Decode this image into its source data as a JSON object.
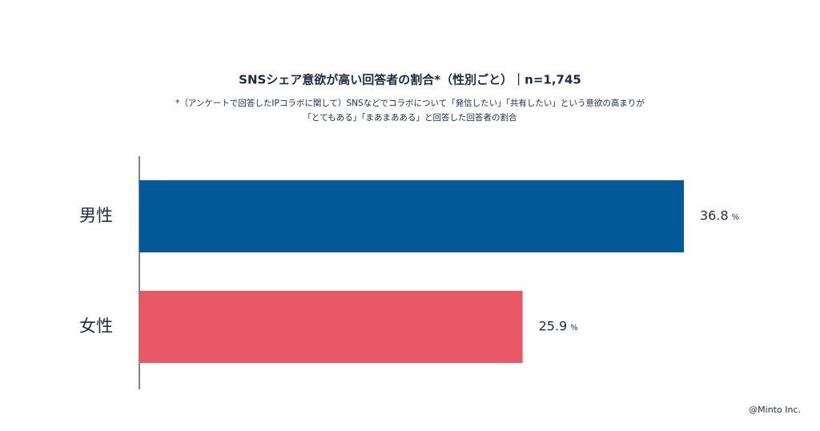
{
  "chart_data": {
    "type": "bar",
    "orientation": "horizontal",
    "title": "SNSシェア意欲が高い回答者の割合*（性別ごと）｜n=1,745",
    "subtitle": [
      "*（アンケートで回答したIPコラボに関して）SNSなどでコラボについて「発信したい」「共有したい」という意欲の高まりが",
      "「とてもある」「まあまあある」と回答した回答者の割合"
    ],
    "categories": [
      "男性",
      "女性"
    ],
    "values": [
      36.8,
      25.9
    ],
    "value_unit": "%",
    "colors": [
      "#005a98",
      "#ea5766"
    ],
    "credit": "@Minto Inc."
  }
}
